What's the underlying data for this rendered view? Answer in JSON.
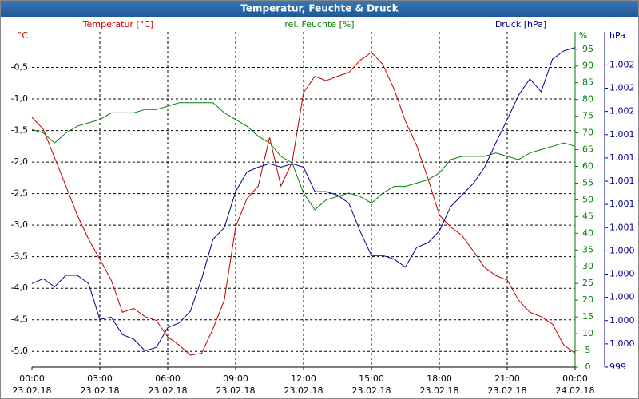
{
  "chart_data": {
    "type": "line",
    "title": "Temperatur, Feuchte & Druck",
    "x": [
      0,
      0.5,
      1,
      1.5,
      2,
      2.5,
      3,
      3.5,
      4,
      4.5,
      5,
      5.5,
      6,
      6.5,
      7,
      7.5,
      8,
      8.5,
      9,
      9.5,
      10,
      10.5,
      11,
      11.5,
      12,
      12.5,
      13,
      13.5,
      14,
      14.5,
      15,
      15.5,
      16,
      16.5,
      17,
      17.5,
      18,
      18.5,
      19,
      19.5,
      20,
      20.5,
      21,
      21.5,
      22,
      22.5,
      23,
      23.5,
      24
    ],
    "xlim": [
      0,
      24
    ],
    "xticks": [
      {
        "value": 0,
        "label": "00:00",
        "date": "23.02.18"
      },
      {
        "value": 3,
        "label": "03:00",
        "date": "23.02.18"
      },
      {
        "value": 6,
        "label": "06:00",
        "date": "23.02.18"
      },
      {
        "value": 9,
        "label": "09:00",
        "date": "23.02.18"
      },
      {
        "value": 12,
        "label": "12:00",
        "date": "23.02.18"
      },
      {
        "value": 15,
        "label": "15:00",
        "date": "23.02.18"
      },
      {
        "value": 18,
        "label": "18:00",
        "date": "23.02.18"
      },
      {
        "value": 21,
        "label": "21:00",
        "date": "23.02.18"
      },
      {
        "value": 24,
        "label": "00:00",
        "date": "24.02.18"
      }
    ],
    "ylim": [
      -5.25,
      0
    ],
    "y_unit": "°C",
    "yticks": [
      {
        "value": -0.5,
        "label": "-0,5"
      },
      {
        "value": -1,
        "label": "-1,0"
      },
      {
        "value": -1.5,
        "label": "-1,5"
      },
      {
        "value": -2,
        "label": "-2,0"
      },
      {
        "value": -2.5,
        "label": "-2,5"
      },
      {
        "value": -3,
        "label": "-3,0"
      },
      {
        "value": -3.5,
        "label": "-3,5"
      },
      {
        "value": -4,
        "label": "-4,0"
      },
      {
        "value": -4.5,
        "label": "-4,5"
      },
      {
        "value": -5,
        "label": "-5,0"
      }
    ],
    "y2lim": [
      0,
      99
    ],
    "y2_unit": "%",
    "y2ticks": [
      0,
      5,
      10,
      15,
      20,
      25,
      30,
      35,
      40,
      45,
      50,
      55,
      60,
      65,
      70,
      75,
      80,
      85,
      90,
      95
    ],
    "y3lim": [
      999.4,
      1002.25
    ],
    "y3_unit": "hPa",
    "y3ticks": [
      {
        "value": 999.4,
        "label": "999"
      },
      {
        "value": 999.6,
        "label": "1.000"
      },
      {
        "value": 999.8,
        "label": "1.000"
      },
      {
        "value": 1000.0,
        "label": "1.000"
      },
      {
        "value": 1000.2,
        "label": "1.000"
      },
      {
        "value": 1000.4,
        "label": "1.000"
      },
      {
        "value": 1000.6,
        "label": "1.001"
      },
      {
        "value": 1000.8,
        "label": "1.001"
      },
      {
        "value": 1001.0,
        "label": "1.001"
      },
      {
        "value": 1001.2,
        "label": "1.001"
      },
      {
        "value": 1001.4,
        "label": "1.001"
      },
      {
        "value": 1001.6,
        "label": "1.002"
      },
      {
        "value": 1001.8,
        "label": "1.002"
      },
      {
        "value": 1002.0,
        "label": "1.002"
      }
    ],
    "grid": true,
    "series": [
      {
        "name": "Temperatur [°C]",
        "color": "#c00000",
        "axis": "y",
        "values": [
          -1.29,
          -1.48,
          -1.93,
          -2.38,
          -2.84,
          -3.22,
          -3.54,
          -3.87,
          -4.38,
          -4.32,
          -4.45,
          -4.51,
          -4.77,
          -4.9,
          -5.06,
          -5.03,
          -4.64,
          -4.19,
          -3.03,
          -2.58,
          -2.38,
          -1.61,
          -2.38,
          -2.0,
          -0.9,
          -0.64,
          -0.71,
          -0.64,
          -0.58,
          -0.39,
          -0.26,
          -0.45,
          -0.84,
          -1.35,
          -1.74,
          -2.26,
          -2.84,
          -3.03,
          -3.16,
          -3.41,
          -3.67,
          -3.8,
          -3.87,
          -4.19,
          -4.38,
          -4.45,
          -4.57,
          -4.9,
          -5.03
        ]
      },
      {
        "name": "rel. Feuchte [%]",
        "color": "#008000",
        "axis": "y2",
        "values": [
          71,
          70,
          67,
          70,
          72,
          73,
          74,
          76,
          76,
          76,
          77,
          77,
          78,
          79,
          79,
          79,
          79,
          76,
          74,
          72,
          69,
          67,
          63,
          61,
          52,
          47,
          50,
          51,
          52,
          51,
          49,
          52,
          54,
          54,
          55,
          56,
          58,
          62,
          63,
          63,
          63,
          64,
          63,
          62,
          64,
          65,
          66,
          67,
          66
        ]
      },
      {
        "name": "Druck [hPa]",
        "color": "#00008b",
        "axis": "y3",
        "values": [
          1000.12,
          1000.16,
          1000.09,
          1000.19,
          1000.19,
          1000.12,
          999.81,
          999.83,
          999.68,
          999.64,
          999.54,
          999.57,
          999.74,
          999.78,
          999.88,
          1000.16,
          1000.5,
          1000.6,
          1000.91,
          1001.08,
          1001.12,
          1001.15,
          1001.12,
          1001.15,
          1001.12,
          1000.91,
          1000.91,
          1000.88,
          1000.81,
          1000.57,
          1000.36,
          1000.36,
          1000.33,
          1000.26,
          1000.43,
          1000.47,
          1000.57,
          1000.78,
          1000.88,
          1000.98,
          1001.12,
          1001.33,
          1001.53,
          1001.74,
          1001.88,
          1001.77,
          1002.05,
          1002.12,
          1002.15
        ]
      }
    ]
  }
}
